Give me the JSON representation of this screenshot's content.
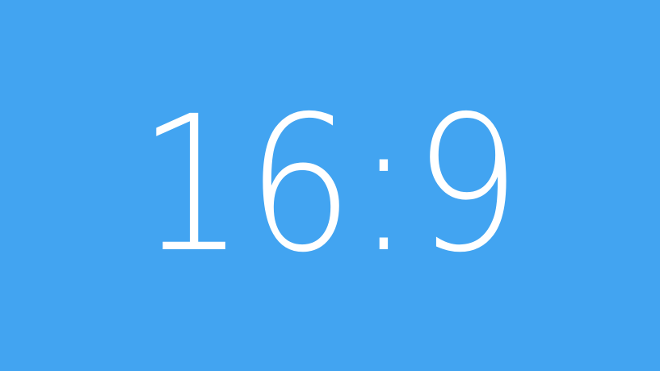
{
  "canvas": {
    "background_color": "#42A4F1",
    "text_color": "#FFFFFF"
  },
  "label": {
    "text": "16:9"
  }
}
